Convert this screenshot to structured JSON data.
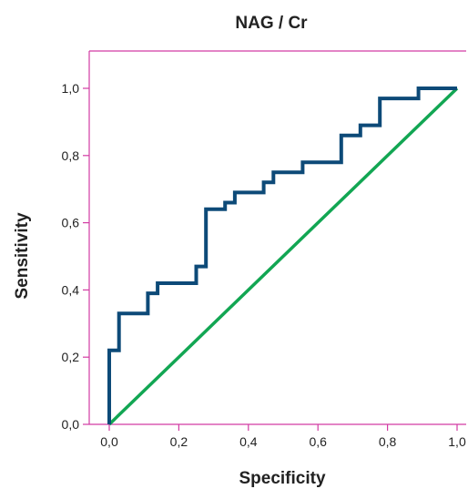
{
  "chart_data": {
    "type": "line",
    "title": "NAG / Cr",
    "xlabel": "Specificity",
    "ylabel": "Sensitivity",
    "xlim": [
      -0.06,
      1.03
    ],
    "ylim": [
      0,
      1.11
    ],
    "x_ticks": [
      "0,0",
      "0,2",
      "0,4",
      "0,6",
      "0,8",
      "1,0"
    ],
    "y_ticks": [
      "0,0",
      "0,2",
      "0,4",
      "0,6",
      "0,8",
      "1,0"
    ],
    "grid": false,
    "colors": {
      "frame": "#d23ba3",
      "roc": "#0d4a78",
      "reference": "#12a653"
    },
    "series": [
      {
        "style": "step",
        "x": [
          0.0,
          0.0,
          0.028,
          0.028,
          0.111,
          0.111,
          0.139,
          0.139,
          0.25,
          0.25,
          0.278,
          0.278,
          0.333,
          0.333,
          0.361,
          0.361,
          0.444,
          0.444,
          0.472,
          0.472,
          0.556,
          0.556,
          0.667,
          0.667,
          0.722,
          0.722,
          0.778,
          0.778,
          0.889,
          0.889,
          1.0
        ],
        "y": [
          0.0,
          0.22,
          0.22,
          0.33,
          0.33,
          0.39,
          0.39,
          0.42,
          0.42,
          0.47,
          0.47,
          0.64,
          0.64,
          0.66,
          0.66,
          0.69,
          0.69,
          0.72,
          0.72,
          0.75,
          0.75,
          0.78,
          0.78,
          0.86,
          0.86,
          0.89,
          0.89,
          0.97,
          0.97,
          1.0,
          1.0
        ]
      },
      {
        "style": "line",
        "x": [
          0,
          1
        ],
        "y": [
          0,
          1
        ]
      }
    ]
  }
}
